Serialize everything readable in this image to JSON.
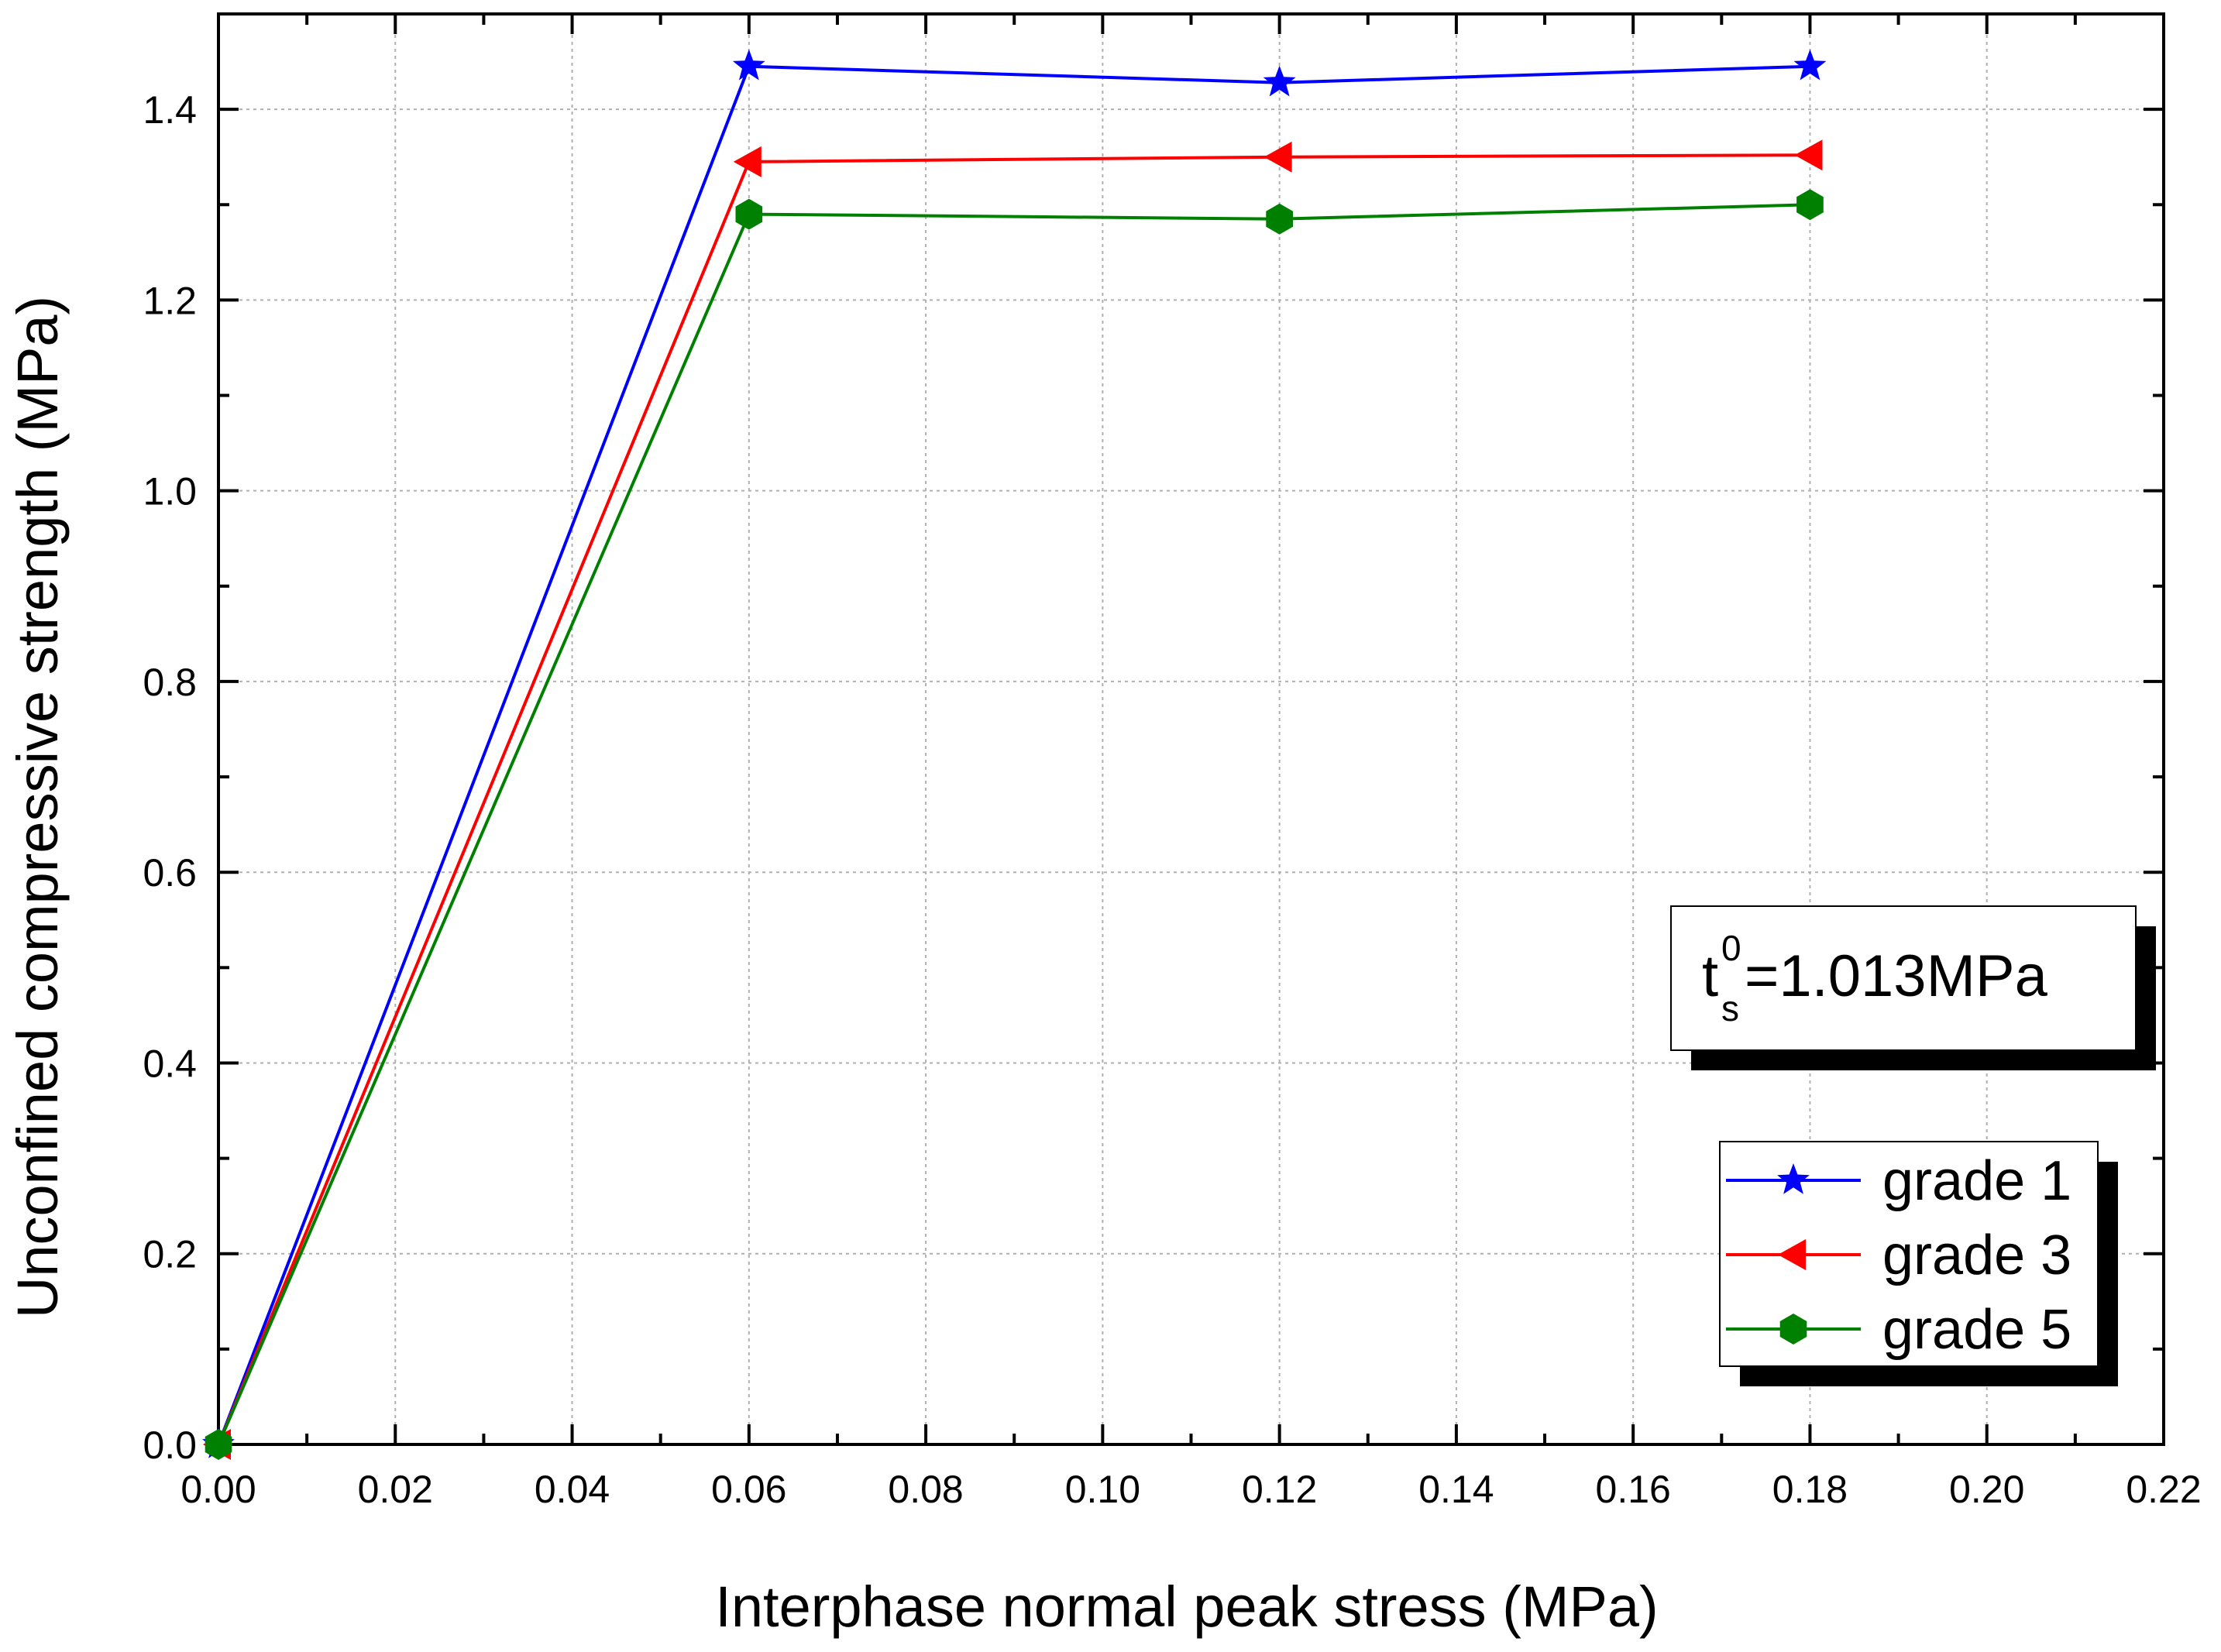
{
  "chart_data": {
    "type": "line",
    "xlabel": "Interphase normal peak stress (MPa)",
    "ylabel": "Unconfined compressive strength (MPa)",
    "xlim": [
      0,
      0.22
    ],
    "ylim": [
      0,
      1.5
    ],
    "x_ticks": [
      "0.00",
      "0.02",
      "0.04",
      "0.06",
      "0.08",
      "0.10",
      "0.12",
      "0.14",
      "0.16",
      "0.18",
      "0.20",
      "0.22"
    ],
    "y_ticks": [
      "0.0",
      "0.2",
      "0.4",
      "0.6",
      "0.8",
      "1.0",
      "1.2",
      "1.4"
    ],
    "grid": true,
    "legend_position": "bottom-right",
    "series": [
      {
        "name": "grade 1",
        "color": "#0000ff",
        "marker": "star",
        "x": [
          0,
          0.06,
          0.12,
          0.18
        ],
        "y": [
          0,
          1.445,
          1.428,
          1.445
        ]
      },
      {
        "name": "grade 3",
        "color": "#ff0000",
        "marker": "left-triangle",
        "x": [
          0,
          0.06,
          0.12,
          0.18
        ],
        "y": [
          0,
          1.345,
          1.35,
          1.352
        ]
      },
      {
        "name": "grade 5",
        "color": "#008000",
        "marker": "hexagon",
        "x": [
          0,
          0.06,
          0.12,
          0.18
        ],
        "y": [
          0,
          1.29,
          1.285,
          1.3
        ]
      }
    ],
    "annotation": {
      "symbol": "t",
      "superscript": "0",
      "subscript": "s",
      "text": "=1.013MPa"
    }
  }
}
